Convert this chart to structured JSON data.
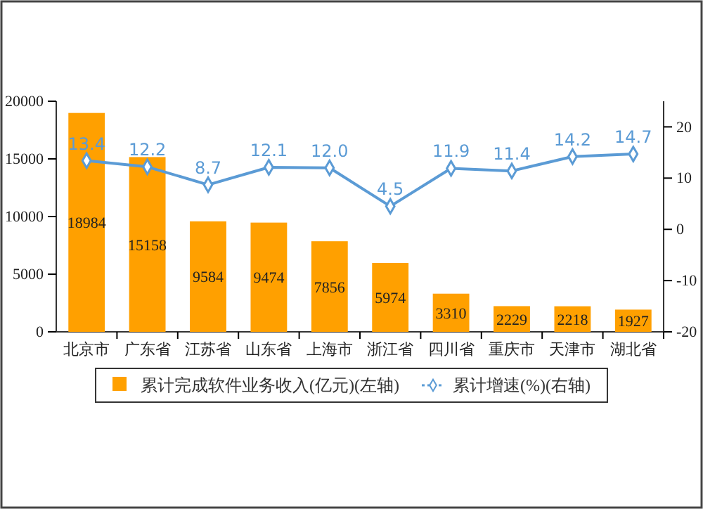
{
  "chart_data": {
    "type": "bar",
    "categories": [
      "北京市",
      "广东省",
      "江苏省",
      "山东省",
      "上海市",
      "浙江省",
      "四川省",
      "重庆市",
      "天津市",
      "湖北省"
    ],
    "series": [
      {
        "name": "累计完成软件业务收入(亿元)(左轴)",
        "color": "#ffa000",
        "values": [
          18984,
          15158,
          9584,
          9474,
          7856,
          5974,
          3310,
          2229,
          2218,
          1927
        ]
      },
      {
        "name": "累计增速(%)(右轴)",
        "type": "line",
        "axis": "y2",
        "color": "#5b9bd5",
        "marker": "diamond",
        "values": [
          13.4,
          12.2,
          8.7,
          12.1,
          12.0,
          4.5,
          11.9,
          11.4,
          14.2,
          14.7
        ],
        "value_labels": [
          "13.4",
          "12.2",
          "8.7",
          "12.1",
          "12.0",
          "4.5",
          "11.9",
          "11.4",
          "14.2",
          "14.7"
        ]
      }
    ],
    "ylim": [
      0,
      20000
    ],
    "yticks": [
      0,
      5000,
      10000,
      15000,
      20000
    ],
    "y2lim": [
      -20,
      25
    ],
    "y2ticks": [
      -20,
      -10,
      0,
      10,
      20
    ],
    "data_labels": true,
    "grid": false,
    "legend": "bottom"
  }
}
